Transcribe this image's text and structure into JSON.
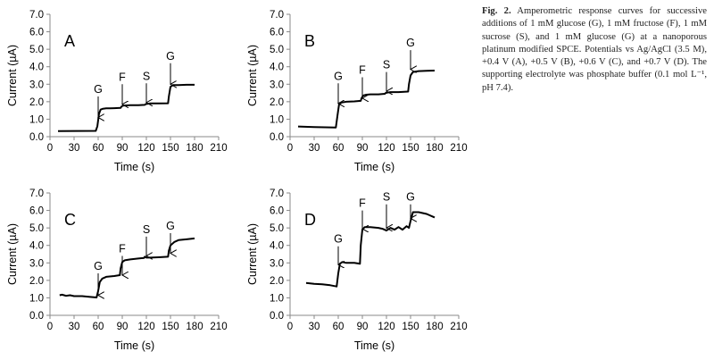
{
  "caption": {
    "label": "Fig. 2.",
    "text": "Amperometric response curves for successive additions of 1 mM glucose (G), 1 mM fructose (F), 1 mM sucrose (S), and 1 mM glucose (G) at a nanoporous platinum modified SPCE. Potentials vs Ag/AgCl (3.5 M), +0.4 V (A), +0.5 V (B), +0.6 V (C), and +0.7 V (D). The supporting electrolyte was phosphate buffer (0.1 mol L⁻¹, pH 7.4)."
  },
  "chart_data": [
    {
      "panel": "A",
      "type": "line",
      "xlabel": "Time (s)",
      "ylabel": "Current (µA)",
      "xlim": [
        0,
        210
      ],
      "ylim": [
        0,
        7
      ],
      "xticks": [
        0,
        30,
        60,
        90,
        120,
        150,
        180,
        210
      ],
      "yticks": [
        "0.0",
        "1.0",
        "2.0",
        "3.0",
        "4.0",
        "5.0",
        "6.0",
        "7.0"
      ],
      "grid": false,
      "line_color": "#000000",
      "series": [
        {
          "x": [
            10,
            57,
            59,
            61,
            63,
            66,
            70,
            75,
            80,
            88,
            89,
            91,
            95,
            100,
            110,
            118,
            119,
            121,
            125,
            135,
            147,
            148,
            150,
            153,
            160,
            170,
            180
          ],
          "y": [
            0.32,
            0.33,
            0.6,
            1.3,
            1.55,
            1.6,
            1.62,
            1.62,
            1.63,
            1.65,
            1.72,
            1.78,
            1.79,
            1.8,
            1.8,
            1.82,
            1.86,
            1.88,
            1.9,
            1.9,
            1.91,
            2.3,
            2.85,
            2.95,
            2.95,
            2.97,
            2.97
          ]
        }
      ],
      "annotations": [
        {
          "label": "G",
          "x": 60,
          "y_tip": 1.1,
          "y_top": 2.3
        },
        {
          "label": "F",
          "x": 90,
          "y_tip": 1.85,
          "y_top": 3.0
        },
        {
          "label": "S",
          "x": 120,
          "y_tip": 1.95,
          "y_top": 3.05
        },
        {
          "label": "G",
          "x": 150,
          "y_tip": 3.0,
          "y_top": 4.2
        }
      ]
    },
    {
      "panel": "B",
      "type": "line",
      "xlabel": "Time (s)",
      "ylabel": "Current (µA)",
      "xlim": [
        0,
        210
      ],
      "ylim": [
        0,
        7
      ],
      "xticks": [
        0,
        30,
        60,
        90,
        120,
        150,
        180,
        210
      ],
      "yticks": [
        "0.0",
        "1.0",
        "2.0",
        "3.0",
        "4.0",
        "5.0",
        "6.0",
        "7.0"
      ],
      "grid": false,
      "line_color": "#000000",
      "series": [
        {
          "x": [
            10,
            30,
            57,
            59,
            61,
            64,
            70,
            80,
            88,
            89,
            91,
            95,
            100,
            110,
            118,
            119,
            121,
            125,
            135,
            147,
            148,
            150,
            153,
            160,
            170,
            180
          ],
          "y": [
            0.58,
            0.55,
            0.52,
            1.2,
            1.85,
            1.95,
            2.0,
            2.02,
            2.05,
            2.2,
            2.35,
            2.4,
            2.42,
            2.42,
            2.45,
            2.5,
            2.52,
            2.55,
            2.55,
            2.58,
            3.0,
            3.5,
            3.7,
            3.75,
            3.77,
            3.78
          ]
        }
      ],
      "annotations": [
        {
          "label": "G",
          "x": 60,
          "y_tip": 1.9,
          "y_top": 3.05
        },
        {
          "label": "F",
          "x": 90,
          "y_tip": 2.2,
          "y_top": 3.4
        },
        {
          "label": "S",
          "x": 120,
          "y_tip": 2.6,
          "y_top": 3.7
        },
        {
          "label": "G",
          "x": 150,
          "y_tip": 3.85,
          "y_top": 4.95
        }
      ]
    },
    {
      "panel": "C",
      "type": "line",
      "xlabel": "Time (s)",
      "ylabel": "Current (µA)",
      "xlim": [
        0,
        210
      ],
      "ylim": [
        0,
        7
      ],
      "xticks": [
        0,
        30,
        60,
        90,
        120,
        150,
        180,
        210
      ],
      "yticks": [
        "0.0",
        "1.0",
        "2.0",
        "3.0",
        "4.0",
        "5.0",
        "6.0",
        "7.0"
      ],
      "grid": false,
      "line_color": "#000000",
      "series": [
        {
          "x": [
            12,
            15,
            20,
            25,
            30,
            40,
            50,
            58,
            60,
            62,
            65,
            70,
            80,
            87,
            88,
            90,
            93,
            100,
            110,
            117,
            118,
            120,
            125,
            135,
            147,
            148,
            150,
            155,
            160,
            170,
            180
          ],
          "y": [
            1.15,
            1.18,
            1.12,
            1.15,
            1.1,
            1.1,
            1.05,
            1.02,
            1.4,
            1.9,
            2.1,
            2.2,
            2.25,
            2.3,
            2.7,
            3.05,
            3.15,
            3.2,
            3.25,
            3.28,
            3.35,
            3.3,
            3.3,
            3.32,
            3.35,
            3.7,
            4.0,
            4.2,
            4.3,
            4.35,
            4.4
          ]
        }
      ],
      "annotations": [
        {
          "label": "G",
          "x": 60,
          "y_tip": 1.15,
          "y_top": 2.4
        },
        {
          "label": "F",
          "x": 90,
          "y_tip": 2.3,
          "y_top": 3.4
        },
        {
          "label": "S",
          "x": 120,
          "y_tip": 3.4,
          "y_top": 4.5
        },
        {
          "label": "G",
          "x": 150,
          "y_tip": 3.55,
          "y_top": 4.7
        }
      ]
    },
    {
      "panel": "D",
      "type": "line",
      "xlabel": "Time (s)",
      "ylabel": "Current (µA)",
      "xlim": [
        0,
        210
      ],
      "ylim": [
        0,
        7
      ],
      "xticks": [
        0,
        30,
        60,
        90,
        120,
        150,
        180,
        210
      ],
      "yticks": [
        "0.0",
        "1.0",
        "2.0",
        "3.0",
        "4.0",
        "5.0",
        "6.0",
        "7.0"
      ],
      "grid": false,
      "line_color": "#000000",
      "series": [
        {
          "x": [
            20,
            30,
            40,
            50,
            58,
            60,
            62,
            65,
            70,
            80,
            87,
            88,
            90,
            93,
            100,
            110,
            115,
            120,
            125,
            130,
            135,
            140,
            145,
            148,
            150,
            153,
            160,
            170,
            180
          ],
          "y": [
            1.85,
            1.8,
            1.78,
            1.72,
            1.65,
            2.4,
            2.95,
            3.05,
            3.0,
            3.0,
            2.95,
            4.0,
            4.9,
            5.05,
            5.05,
            5.0,
            4.95,
            4.85,
            5.0,
            4.9,
            5.05,
            4.9,
            5.1,
            5.0,
            5.4,
            5.9,
            5.9,
            5.8,
            5.6
          ]
        }
      ],
      "annotations": [
        {
          "label": "G",
          "x": 60,
          "y_tip": 2.9,
          "y_top": 3.95
        },
        {
          "label": "F",
          "x": 90,
          "y_tip": 4.95,
          "y_top": 6.0
        },
        {
          "label": "S",
          "x": 120,
          "y_tip": 5.0,
          "y_top": 6.35
        },
        {
          "label": "G",
          "x": 150,
          "y_tip": 5.55,
          "y_top": 6.35
        }
      ]
    }
  ]
}
